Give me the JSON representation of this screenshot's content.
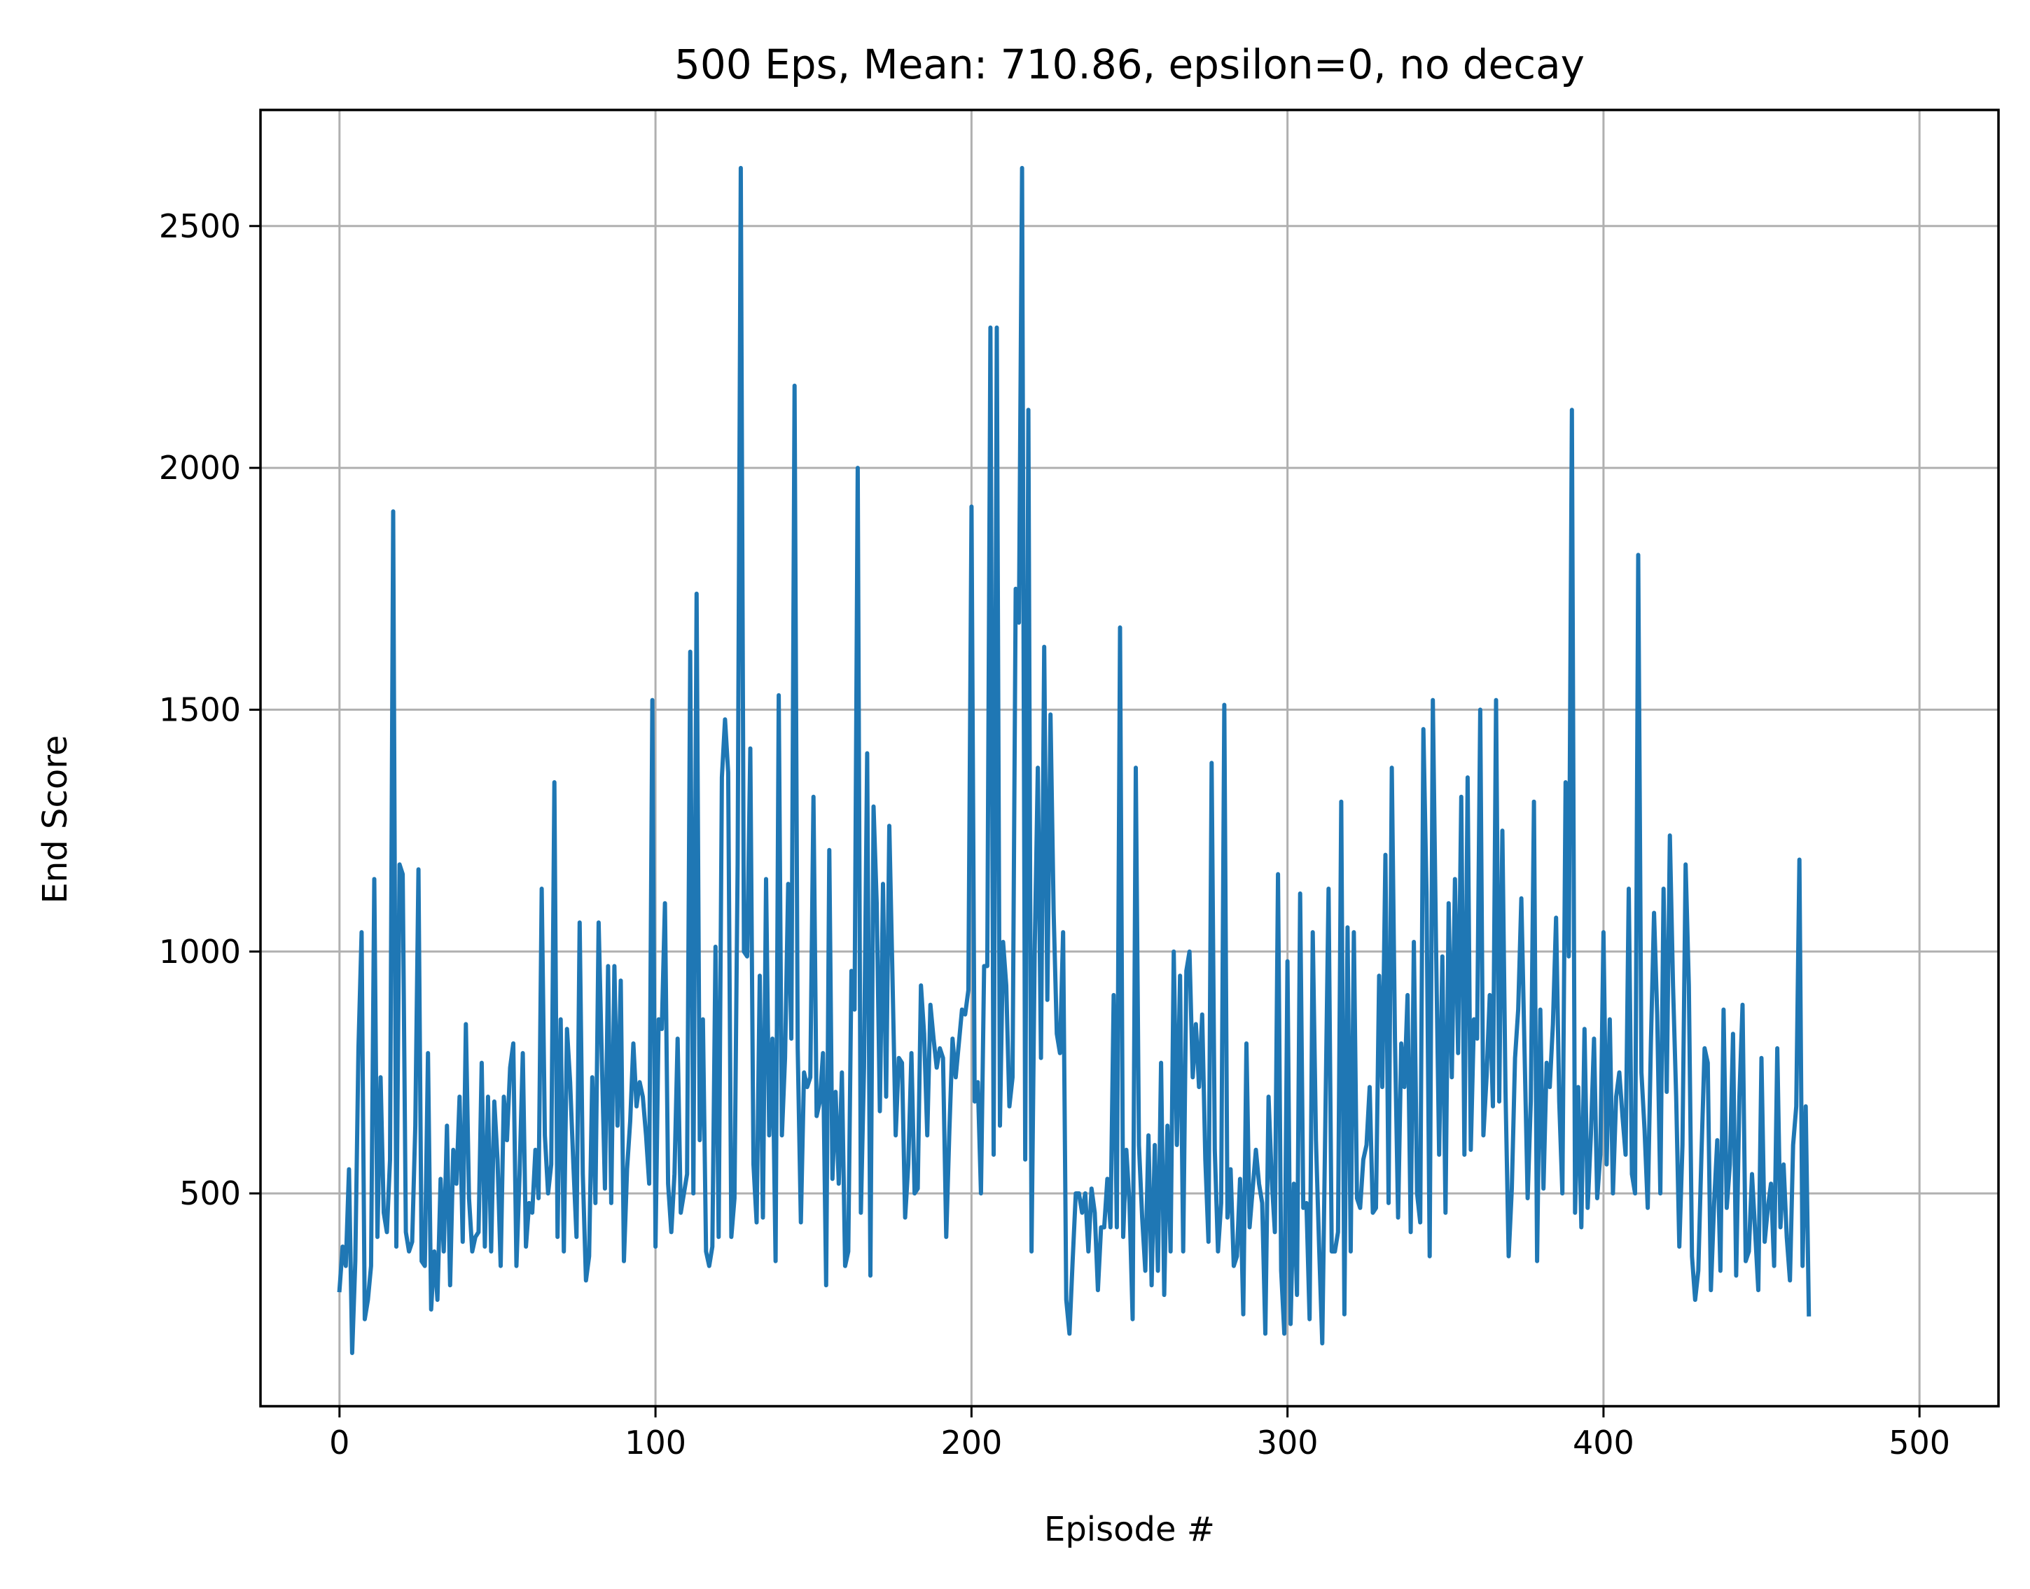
{
  "chart_data": {
    "type": "line",
    "title": "500 Eps, Mean: 710.86, epsilon=0, no decay",
    "xlabel": "Episode #",
    "ylabel": "End Score",
    "xlim": [
      -25,
      525
    ],
    "ylim": [
      60,
      2740
    ],
    "xticks": [
      0,
      100,
      200,
      300,
      400,
      500
    ],
    "yticks": [
      500,
      1000,
      1500,
      2000,
      2500
    ],
    "grid": true,
    "legend": "none",
    "colors": {
      "series": "#1f77b4",
      "grid": "#b0b0b0",
      "axes": "#000000"
    },
    "series": [
      {
        "values": [
          300,
          390,
          350,
          550,
          170,
          360,
          800,
          1040,
          240,
          280,
          350,
          1150,
          410,
          740,
          460,
          420,
          570,
          1910,
          390,
          1180,
          1160,
          420,
          380,
          400,
          640,
          1170,
          360,
          350,
          790,
          260,
          380,
          280,
          530,
          380,
          640,
          310,
          590,
          520,
          700,
          400,
          850,
          490,
          380,
          410,
          420,
          770,
          390,
          700,
          380,
          690,
          570,
          350,
          700,
          610,
          760,
          810,
          350,
          540,
          790,
          390,
          480,
          460,
          590,
          490,
          1130,
          620,
          500,
          560,
          1350,
          410,
          860,
          380,
          840,
          730,
          560,
          410,
          1060,
          540,
          320,
          370,
          740,
          480,
          1060,
          780,
          510,
          970,
          480,
          970,
          640,
          940,
          360,
          550,
          650,
          810,
          680,
          730,
          700,
          620,
          520,
          1520,
          390,
          860,
          840,
          1100,
          520,
          420,
          540,
          820,
          460,
          500,
          540,
          1620,
          500,
          1740,
          610,
          860,
          380,
          350,
          390,
          1010,
          410,
          1360,
          1480,
          1370,
          410,
          490,
          1180,
          2620,
          1000,
          990,
          1420,
          560,
          440,
          950,
          450,
          1150,
          620,
          820,
          360,
          1530,
          620,
          780,
          1140,
          820,
          2170,
          800,
          440,
          750,
          720,
          740,
          1320,
          660,
          690,
          790,
          310,
          1210,
          530,
          710,
          520,
          750,
          350,
          380,
          960,
          880,
          2000,
          460,
          760,
          1410,
          330,
          1300,
          1100,
          670,
          1140,
          700,
          1260,
          950,
          620,
          780,
          770,
          450,
          560,
          790,
          500,
          510,
          930,
          830,
          620,
          890,
          820,
          760,
          800,
          780,
          410,
          630,
          820,
          740,
          810,
          880,
          870,
          920,
          1920,
          690,
          730,
          500,
          970,
          970,
          2290,
          580,
          2290,
          640,
          1020,
          930,
          680,
          740,
          1750,
          1680,
          2620,
          570,
          2120,
          380,
          1000,
          1380,
          780,
          1630,
          900,
          1490,
          1080,
          830,
          790,
          1040,
          280,
          210,
          360,
          500,
          500,
          460,
          500,
          380,
          510,
          460,
          300,
          430,
          430,
          530,
          430,
          910,
          430,
          1670,
          410,
          590,
          480,
          240,
          1380,
          600,
          450,
          340,
          620,
          310,
          600,
          340,
          770,
          290,
          640,
          380,
          1000,
          600,
          950,
          380,
          960,
          1000,
          740,
          850,
          720,
          870,
          570,
          400,
          1390,
          590,
          380,
          480,
          1510,
          450,
          550,
          350,
          370,
          530,
          250,
          810,
          430,
          510,
          590,
          520,
          480,
          210,
          700,
          530,
          420,
          1160,
          340,
          210,
          980,
          230,
          520,
          290,
          1120,
          470,
          480,
          240,
          1040,
          610,
          390,
          190,
          660,
          1130,
          380,
          380,
          420,
          1310,
          250,
          1050,
          380,
          1040,
          490,
          470,
          570,
          600,
          720,
          460,
          470,
          950,
          720,
          1200,
          480,
          1380,
          820,
          450,
          810,
          720,
          910,
          420,
          1020,
          500,
          440,
          1460,
          1120,
          370,
          1520,
          1020,
          580,
          990,
          460,
          1100,
          740,
          1150,
          790,
          1320,
          580,
          1360,
          590,
          860,
          820,
          1500,
          620,
          740,
          910,
          680,
          1520,
          690,
          1250,
          710,
          370,
          510,
          780,
          880,
          1110,
          800,
          490,
          690,
          1310,
          360,
          880,
          510,
          770,
          720,
          850,
          1070,
          690,
          500,
          1350,
          990,
          2120,
          460,
          720,
          430,
          840,
          470,
          620,
          820,
          490,
          580,
          1040,
          560,
          860,
          500,
          700,
          750,
          660,
          580,
          1130,
          540,
          500,
          1820,
          750,
          630,
          470,
          810,
          1080,
          870,
          500,
          1130,
          710,
          1240,
          930,
          700,
          390,
          600,
          1180,
          930,
          370,
          280,
          340,
          580,
          800,
          770,
          300,
          480,
          610,
          340,
          880,
          470,
          560,
          830,
          330,
          700,
          890,
          360,
          380,
          540,
          420,
          300,
          780,
          400,
          470,
          520,
          350,
          800,
          430,
          560,
          410,
          320,
          600,
          680,
          1190,
          350,
          680,
          250
        ]
      }
    ]
  }
}
